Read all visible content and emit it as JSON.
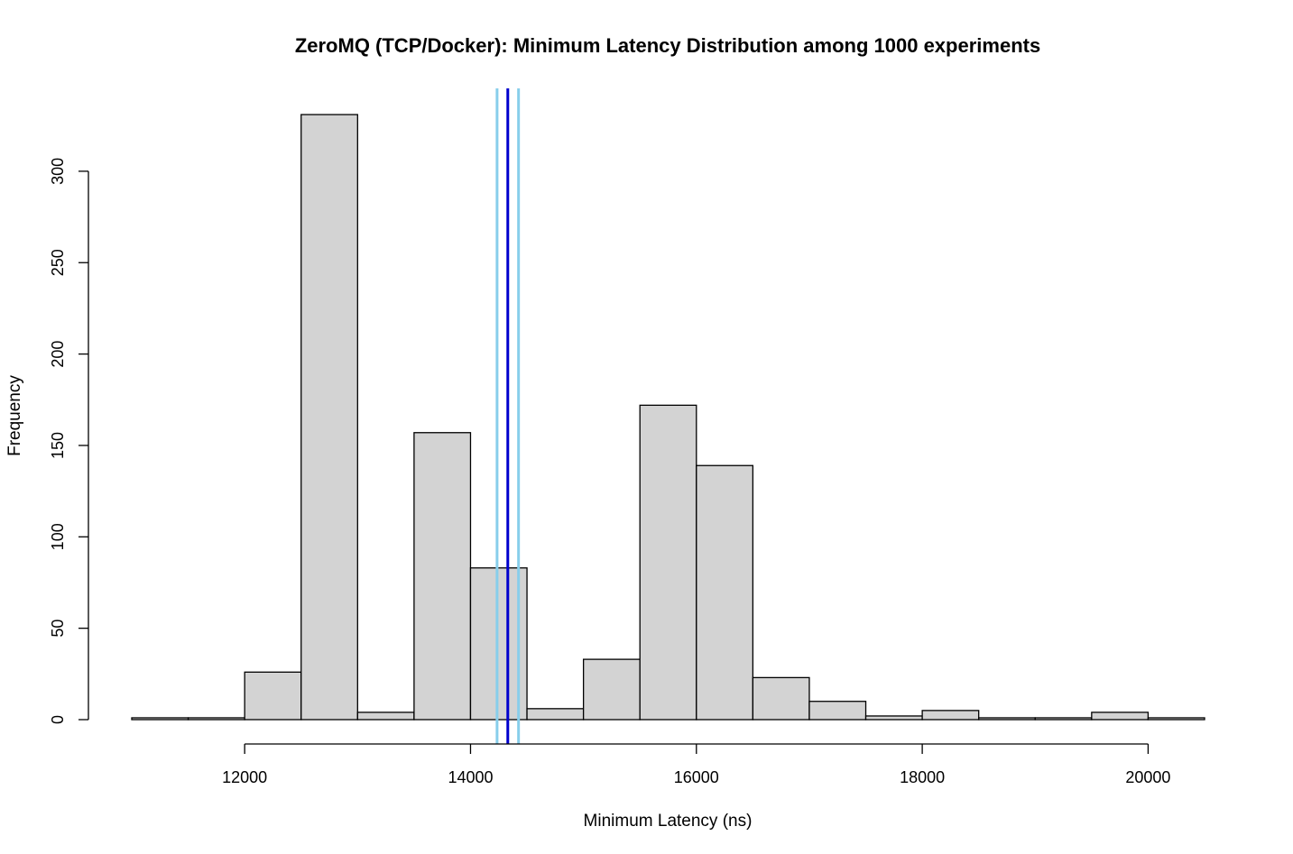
{
  "chart_data": {
    "type": "bar",
    "title": "ZeroMQ (TCP/Docker): Minimum Latency Distribution among 1000 experiments",
    "xlabel": "Minimum Latency (ns)",
    "ylabel": "Frequency",
    "xlim": [
      11000,
      20500
    ],
    "ylim": [
      0,
      330
    ],
    "x_ticks": [
      12000,
      14000,
      16000,
      18000,
      20000
    ],
    "y_ticks": [
      0,
      50,
      100,
      150,
      200,
      250,
      300
    ],
    "bin_width": 500,
    "bins": [
      {
        "start": 11000,
        "end": 11500,
        "count": 1
      },
      {
        "start": 11500,
        "end": 12000,
        "count": 1
      },
      {
        "start": 12000,
        "end": 12500,
        "count": 26
      },
      {
        "start": 12500,
        "end": 13000,
        "count": 331
      },
      {
        "start": 13000,
        "end": 13500,
        "count": 4
      },
      {
        "start": 13500,
        "end": 14000,
        "count": 157
      },
      {
        "start": 14000,
        "end": 14500,
        "count": 83
      },
      {
        "start": 14500,
        "end": 15000,
        "count": 6
      },
      {
        "start": 15000,
        "end": 15500,
        "count": 33
      },
      {
        "start": 15500,
        "end": 16000,
        "count": 172
      },
      {
        "start": 16000,
        "end": 16500,
        "count": 139
      },
      {
        "start": 16500,
        "end": 17000,
        "count": 23
      },
      {
        "start": 17000,
        "end": 17500,
        "count": 10
      },
      {
        "start": 17500,
        "end": 18000,
        "count": 2
      },
      {
        "start": 18000,
        "end": 18500,
        "count": 5
      },
      {
        "start": 18500,
        "end": 19000,
        "count": 1
      },
      {
        "start": 19000,
        "end": 19500,
        "count": 1
      },
      {
        "start": 19500,
        "end": 20000,
        "count": 4
      },
      {
        "start": 20000,
        "end": 20500,
        "count": 1
      }
    ],
    "reference_lines": [
      {
        "x": 14235,
        "color": "#87ceeb"
      },
      {
        "x": 14330,
        "color": "#0000cd"
      },
      {
        "x": 14425,
        "color": "#87ceeb"
      }
    ],
    "bar_fill": "#d3d3d3",
    "bar_stroke": "#000000",
    "grid": false,
    "legend": "none"
  }
}
